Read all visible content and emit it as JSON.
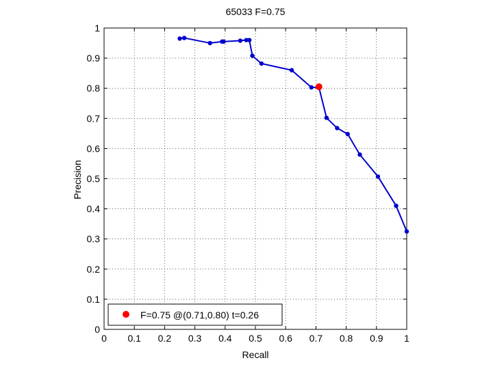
{
  "chart_data": {
    "type": "line",
    "title": "65033 F=0.75",
    "xlabel": "Recall",
    "ylabel": "Precision",
    "xlim": [
      0,
      1
    ],
    "ylim": [
      0,
      1
    ],
    "xticks": [
      "0",
      "0.1",
      "0.2",
      "0.3",
      "0.4",
      "0.5",
      "0.6",
      "0.7",
      "0.8",
      "0.9",
      "1"
    ],
    "yticks": [
      "0",
      "0.1",
      "0.2",
      "0.3",
      "0.4",
      "0.5",
      "0.6",
      "0.7",
      "0.8",
      "0.9",
      "1"
    ],
    "grid": true,
    "series": [
      {
        "color": "#0000cc",
        "points": [
          [
            0.25,
            0.965
          ],
          [
            0.265,
            0.967
          ],
          [
            0.35,
            0.95
          ],
          [
            0.39,
            0.955
          ],
          [
            0.395,
            0.955
          ],
          [
            0.45,
            0.958
          ],
          [
            0.47,
            0.96
          ],
          [
            0.48,
            0.96
          ],
          [
            0.49,
            0.908
          ],
          [
            0.52,
            0.882
          ],
          [
            0.62,
            0.86
          ],
          [
            0.685,
            0.803
          ],
          [
            0.71,
            0.803
          ],
          [
            0.735,
            0.702
          ],
          [
            0.77,
            0.668
          ],
          [
            0.805,
            0.648
          ],
          [
            0.845,
            0.58
          ],
          [
            0.905,
            0.507
          ],
          [
            0.965,
            0.41
          ],
          [
            1.0,
            0.325
          ]
        ]
      }
    ],
    "best_point": {
      "x": 0.71,
      "y": 0.805,
      "color": "#ff0000"
    },
    "legend": {
      "position": "bottom-left",
      "label": "F=0.75 @(0.71,0.80) t=0.26"
    }
  }
}
